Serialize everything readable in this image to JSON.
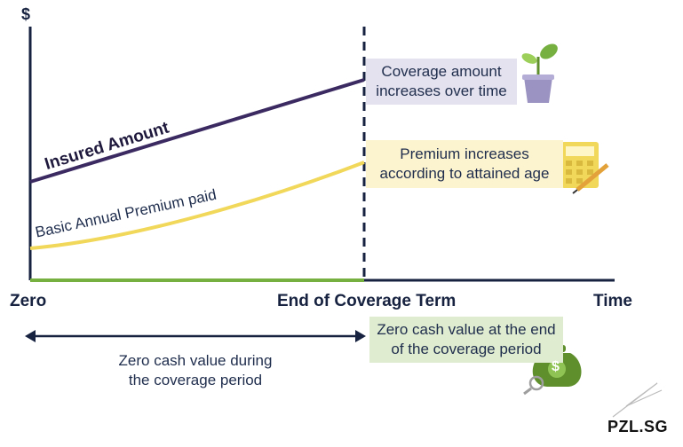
{
  "axes": {
    "y_label": "$",
    "x_start": "Zero",
    "x_mid": "End of Coverage Term",
    "x_end": "Time"
  },
  "lines": {
    "insured": {
      "label": "Insured Amount",
      "color": "#3b2a62"
    },
    "premium": {
      "label": "Basic Annual Premium paid",
      "color": "#f1d75a"
    }
  },
  "callouts": {
    "coverage": {
      "line1": "Coverage amount",
      "line2": "increases over time",
      "icon": "plant-pot-icon",
      "bg": "#e4e2ee"
    },
    "premium": {
      "line1": "Premium increases",
      "line2": "according to attained age",
      "icon": "calculator-icon",
      "bg": "#fcf3cf"
    },
    "cash_value": {
      "line1": "Zero cash value at the end",
      "line2": "of the coverage period",
      "icon": "money-bag-icon",
      "bg": "#dfeccf"
    }
  },
  "bottom_note": {
    "line1": "Zero cash value during",
    "line2": "the coverage period"
  },
  "brand": "PZL.SG",
  "colors": {
    "axis": "#16223f",
    "baseline": "#76b041",
    "divider": "#16223f"
  }
}
